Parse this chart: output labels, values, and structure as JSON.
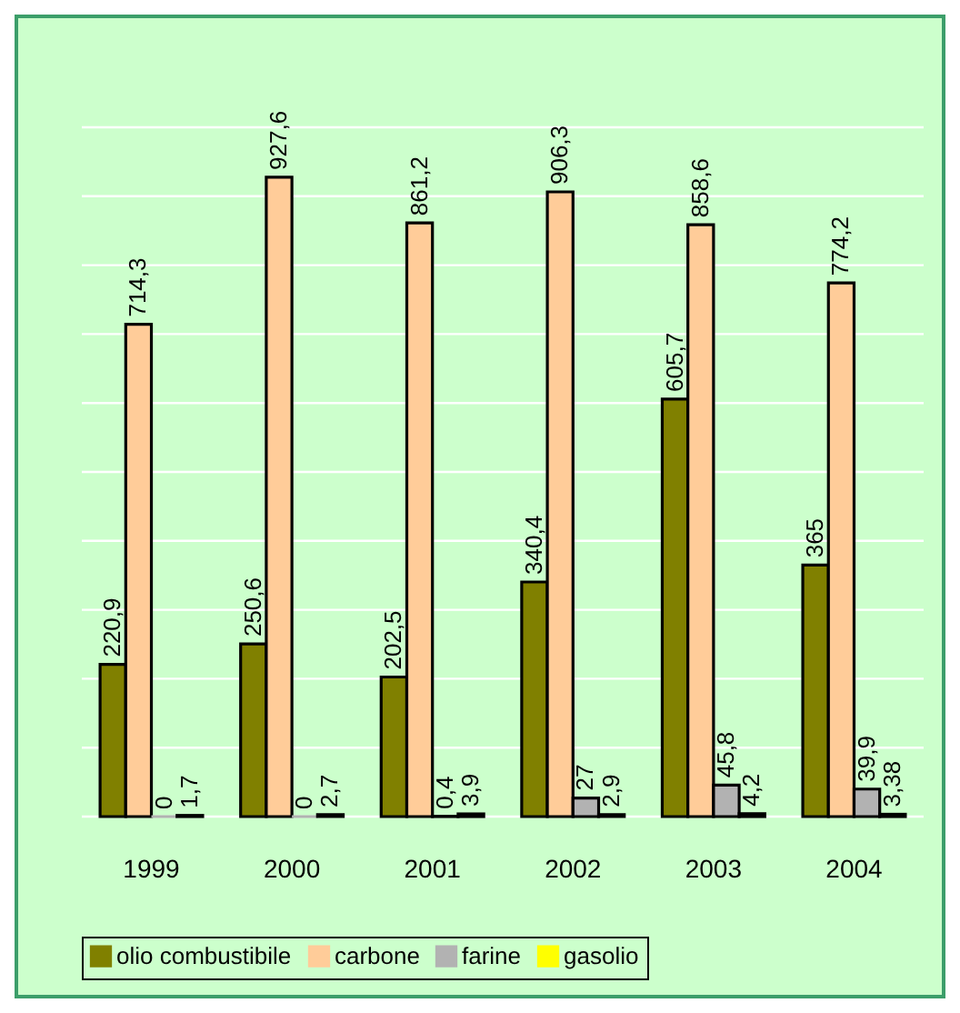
{
  "chart_data": {
    "type": "bar",
    "categories": [
      "1999",
      "2000",
      "2001",
      "2002",
      "2003",
      "2004"
    ],
    "series": [
      {
        "name": "olio combustibile",
        "color": "#808000",
        "values": [
          220.9,
          250.6,
          202.5,
          340.4,
          605.7,
          365
        ],
        "value_labels": [
          "220,9",
          "250,6",
          "202,5",
          "340,4",
          "605,7",
          "365"
        ]
      },
      {
        "name": "carbone",
        "color": "#ffcc99",
        "values": [
          714.3,
          927.6,
          861.2,
          906.3,
          858.6,
          774.2
        ],
        "value_labels": [
          "714,3",
          "927,6",
          "861,2",
          "906,3",
          "858,6",
          "774,2"
        ]
      },
      {
        "name": "farine",
        "color": "#b2b2b2",
        "values": [
          0,
          0,
          0.4,
          27,
          45.8,
          39.9
        ],
        "value_labels": [
          "0",
          "0",
          "0,4",
          "27",
          "45,8",
          "39,9"
        ]
      },
      {
        "name": "gasolio",
        "color": "#ffff00",
        "values": [
          1.7,
          2.7,
          3.9,
          2.9,
          4.2,
          3.38
        ],
        "value_labels": [
          "1,7",
          "2,7",
          "3,9",
          "2,9",
          "4,2",
          "3,38"
        ]
      }
    ],
    "ylim": [
      0,
      1000
    ],
    "yticks": [
      {
        "value": 0,
        "label": null
      },
      {
        "value": 100,
        "label": null
      },
      {
        "value": 200,
        "label": null
      },
      {
        "value": 300,
        "label": null
      },
      {
        "value": 400,
        "label": null
      },
      {
        "value": 500,
        "label": null
      },
      {
        "value": 600,
        "label": null
      },
      {
        "value": 700,
        "label": null
      },
      {
        "value": 800,
        "label": null
      },
      {
        "value": 900,
        "label": null
      },
      {
        "value": 1000,
        "label": null
      }
    ],
    "tick_labels": "x",
    "grid": "y",
    "legend": "bottom"
  }
}
